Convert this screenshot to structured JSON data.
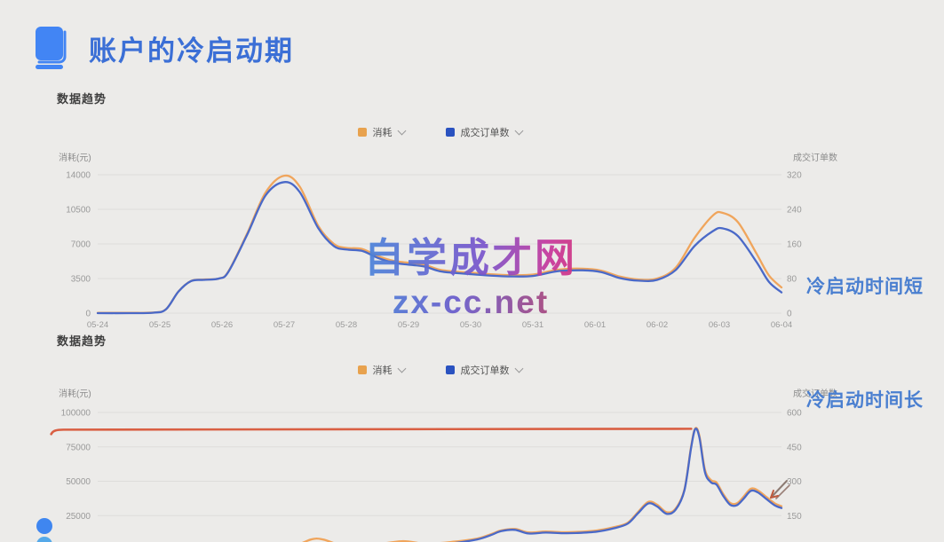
{
  "header": {
    "title": "账户的冷启动期"
  },
  "annotations": {
    "short": "冷启动时间短",
    "long": "冷启动时间长"
  },
  "watermark": {
    "line1": "自学成才网",
    "line2": "zx-cc.net"
  },
  "colors": {
    "background": "#ecebe9",
    "title_blue": "#3b6fd6",
    "book_icon_blue": "#4285f4",
    "side_note_blue": "#4a7fd0",
    "line_orange": "#f0a55c",
    "line_blue": "#4a69c8",
    "flat_red_line": "#d95f43",
    "legend_orange_swatch": "#e8a24e",
    "legend_blue_swatch": "#2a52c0",
    "axis_text": "#9a9a9a",
    "gridline": "rgba(0,0,0,0.06)"
  },
  "chart_data": [
    {
      "type": "line",
      "section_label": "数据趋势",
      "legend_items": [
        {
          "label": "消耗",
          "color": "#e8a24e"
        },
        {
          "label": "成交订单数",
          "color": "#2a52c0"
        }
      ],
      "x_labels": [
        "05-24",
        "05-25",
        "05-26",
        "05-27",
        "05-28",
        "05-29",
        "05-30",
        "05-31",
        "06-01",
        "06-02",
        "06-03",
        "06-04"
      ],
      "left_axis": {
        "label": "消耗(元)",
        "ticks": [
          0,
          3500,
          7000,
          10500,
          14000
        ],
        "ylim": [
          0,
          14000
        ]
      },
      "right_axis": {
        "label": "成交订单数",
        "ticks": [
          0,
          80,
          160,
          240,
          320
        ],
        "ylim": [
          0,
          320
        ]
      },
      "grid": true,
      "series": [
        {
          "name": "消耗",
          "axis": "left",
          "color": "#f0a55c",
          "x_unit": "day_index_0_to_11",
          "points": [
            [
              0,
              30
            ],
            [
              0.5,
              30
            ],
            [
              0.9,
              60
            ],
            [
              1.1,
              400
            ],
            [
              1.3,
              2200
            ],
            [
              1.5,
              3250
            ],
            [
              1.7,
              3400
            ],
            [
              1.95,
              3500
            ],
            [
              2.1,
              4200
            ],
            [
              2.4,
              8000
            ],
            [
              2.7,
              12200
            ],
            [
              3.0,
              13900
            ],
            [
              3.25,
              12800
            ],
            [
              3.55,
              8800
            ],
            [
              3.8,
              7000
            ],
            [
              4.0,
              6600
            ],
            [
              4.25,
              6500
            ],
            [
              4.5,
              5800
            ],
            [
              4.75,
              5300
            ],
            [
              5.0,
              5100
            ],
            [
              5.25,
              4900
            ],
            [
              5.5,
              4400
            ],
            [
              5.75,
              4200
            ],
            [
              6.0,
              4100
            ],
            [
              6.3,
              3950
            ],
            [
              6.6,
              3850
            ],
            [
              7.0,
              3900
            ],
            [
              7.4,
              4400
            ],
            [
              7.8,
              4500
            ],
            [
              8.1,
              4300
            ],
            [
              8.4,
              3700
            ],
            [
              8.7,
              3400
            ],
            [
              9.0,
              3500
            ],
            [
              9.3,
              4600
            ],
            [
              9.6,
              7600
            ],
            [
              9.9,
              9900
            ],
            [
              10.05,
              10150
            ],
            [
              10.3,
              9200
            ],
            [
              10.6,
              6000
            ],
            [
              10.8,
              3800
            ],
            [
              11,
              2600
            ]
          ]
        },
        {
          "name": "成交订单数",
          "axis": "right",
          "color": "#4a69c8",
          "x_unit": "day_index_0_to_11",
          "points": [
            [
              0,
              0
            ],
            [
              0.5,
              0
            ],
            [
              0.9,
              1
            ],
            [
              1.1,
              9
            ],
            [
              1.3,
              50
            ],
            [
              1.5,
              74
            ],
            [
              1.7,
              77
            ],
            [
              1.95,
              80
            ],
            [
              2.1,
              95
            ],
            [
              2.4,
              180
            ],
            [
              2.7,
              272
            ],
            [
              3.0,
              303
            ],
            [
              3.25,
              280
            ],
            [
              3.55,
              196
            ],
            [
              3.8,
              155
            ],
            [
              4.0,
              147
            ],
            [
              4.25,
              144
            ],
            [
              4.5,
              128
            ],
            [
              4.75,
              117
            ],
            [
              5.0,
              112
            ],
            [
              5.25,
              108
            ],
            [
              5.5,
              97
            ],
            [
              5.75,
              93
            ],
            [
              6.0,
              90
            ],
            [
              6.3,
              87
            ],
            [
              6.6,
              85
            ],
            [
              7.0,
              86
            ],
            [
              7.4,
              97
            ],
            [
              7.8,
              99
            ],
            [
              8.1,
              95
            ],
            [
              8.4,
              81
            ],
            [
              8.7,
              75
            ],
            [
              9.0,
              77
            ],
            [
              9.3,
              100
            ],
            [
              9.6,
              155
            ],
            [
              9.9,
              190
            ],
            [
              10.05,
              196
            ],
            [
              10.3,
              178
            ],
            [
              10.6,
              118
            ],
            [
              10.8,
              72
            ],
            [
              11,
              48
            ]
          ]
        }
      ]
    },
    {
      "type": "line",
      "section_label": "数据趋势",
      "legend_items": [
        {
          "label": "消耗",
          "color": "#e8a24e"
        },
        {
          "label": "成交订单数",
          "color": "#2a52c0"
        }
      ],
      "x_labels": [],
      "x_labels_visible": false,
      "left_axis": {
        "label": "消耗(元)",
        "ticks": [
          25000,
          50000,
          75000,
          100000
        ],
        "ylim": [
          0,
          100000
        ]
      },
      "right_axis": {
        "label": "成交订单数",
        "ticks": [
          150,
          300,
          450,
          600
        ],
        "ylim": [
          0,
          600
        ]
      },
      "grid": true,
      "series": [
        {
          "name": "消耗",
          "axis": "left",
          "color": "#f0a55c",
          "x_unit": "fraction_0_to_1",
          "points": [
            [
              0,
              900
            ],
            [
              0.1,
              1100
            ],
            [
              0.2,
              1400
            ],
            [
              0.28,
              2500
            ],
            [
              0.32,
              8300
            ],
            [
              0.36,
              3000
            ],
            [
              0.4,
              3500
            ],
            [
              0.445,
              6400
            ],
            [
              0.48,
              4500
            ],
            [
              0.52,
              6000
            ],
            [
              0.555,
              8300
            ],
            [
              0.575,
              11500
            ],
            [
              0.59,
              14200
            ],
            [
              0.61,
              15300
            ],
            [
              0.63,
              12800
            ],
            [
              0.655,
              13400
            ],
            [
              0.68,
              12900
            ],
            [
              0.7,
              13100
            ],
            [
              0.73,
              14200
            ],
            [
              0.755,
              16600
            ],
            [
              0.775,
              19800
            ],
            [
              0.79,
              27500
            ],
            [
              0.805,
              35000
            ],
            [
              0.818,
              33000
            ],
            [
              0.832,
              27500
            ],
            [
              0.845,
              30000
            ],
            [
              0.858,
              44000
            ],
            [
              0.868,
              76000
            ],
            [
              0.874,
              88500
            ],
            [
              0.88,
              83000
            ],
            [
              0.888,
              58500
            ],
            [
              0.897,
              50800
            ],
            [
              0.905,
              49000
            ],
            [
              0.915,
              40500
            ],
            [
              0.925,
              34200
            ],
            [
              0.935,
              34000
            ],
            [
              0.945,
              39000
            ],
            [
              0.955,
              44500
            ],
            [
              0.965,
              43500
            ],
            [
              0.978,
              38500
            ],
            [
              0.99,
              34000
            ],
            [
              1.0,
              31800
            ]
          ]
        },
        {
          "name": "成交订单数",
          "axis": "right",
          "color": "#4a69c8",
          "x_unit": "fraction_0_to_1",
          "points": [
            [
              0,
              4
            ],
            [
              0.15,
              6
            ],
            [
              0.3,
              9
            ],
            [
              0.32,
              12
            ],
            [
              0.4,
              14
            ],
            [
              0.47,
              18
            ],
            [
              0.52,
              30
            ],
            [
              0.555,
              46
            ],
            [
              0.575,
              65
            ],
            [
              0.59,
              82
            ],
            [
              0.61,
              88
            ],
            [
              0.63,
              72
            ],
            [
              0.655,
              76
            ],
            [
              0.68,
              73
            ],
            [
              0.7,
              74
            ],
            [
              0.73,
              80
            ],
            [
              0.755,
              95
            ],
            [
              0.775,
              115
            ],
            [
              0.79,
              160
            ],
            [
              0.805,
              203
            ],
            [
              0.818,
              190
            ],
            [
              0.832,
              158
            ],
            [
              0.845,
              175
            ],
            [
              0.858,
              260
            ],
            [
              0.868,
              450
            ],
            [
              0.874,
              528
            ],
            [
              0.88,
              490
            ],
            [
              0.888,
              340
            ],
            [
              0.897,
              295
            ],
            [
              0.905,
              285
            ],
            [
              0.915,
              235
            ],
            [
              0.925,
              197
            ],
            [
              0.935,
              196
            ],
            [
              0.945,
              225
            ],
            [
              0.955,
              258
            ],
            [
              0.965,
              252
            ],
            [
              0.978,
              222
            ],
            [
              0.99,
              195
            ],
            [
              1.0,
              183
            ]
          ]
        }
      ],
      "annotations": [
        {
          "type": "flat_line",
          "color": "#d95f43",
          "value_left_axis": 87500,
          "x_from_fraction": -0.068,
          "x_to_fraction": 0.868,
          "desc": "红色水平标注线，延伸至曲线尖峰处"
        },
        {
          "type": "hand_drawn_arrow",
          "x_fraction": 0.98,
          "desc": "指向曲线末端的手绘箭头"
        }
      ]
    }
  ]
}
